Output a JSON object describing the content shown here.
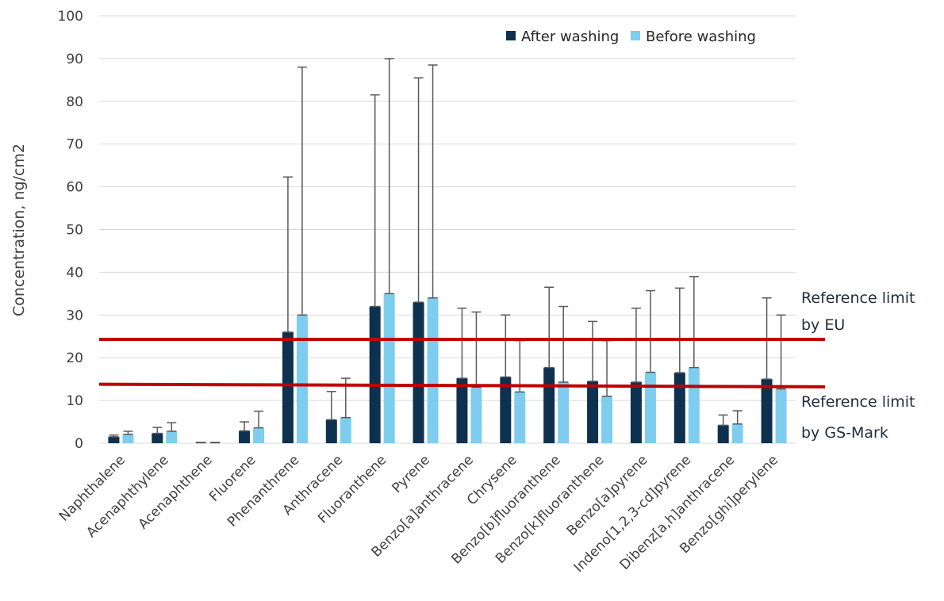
{
  "chart_data": {
    "type": "bar",
    "ylabel": "Concentration, ng/cm2",
    "xlabel": "",
    "ylim": [
      0,
      100
    ],
    "yticks": [
      0,
      10,
      20,
      30,
      40,
      50,
      60,
      70,
      80,
      90,
      100
    ],
    "grid": true,
    "legend_position": "top-right",
    "categories": [
      "Naphthalene",
      "Acenaphthylene",
      "Acenaphthene",
      "Fluorene",
      "Phenanthrene",
      "Anthracene",
      "Fluoranthene",
      "Pyrene",
      "Benzo[a]anthracene",
      "Chrysene",
      "Benzo[b]fluoranthene",
      "Benzo[k]fluoranthene",
      "Benzo[a]pyrene",
      "Indeno[1,2,3-cd]pyrene",
      "Dibenz[a,h]anthracene",
      "Benzo[ghi]perylene"
    ],
    "series": [
      {
        "name": "After washing",
        "color": "#0e3150",
        "values": [
          1.5,
          2.3,
          0.1,
          2.9,
          26,
          5.5,
          32,
          33,
          15.2,
          15.5,
          17.7,
          14.5,
          14.3,
          16.5,
          4.2,
          15
        ],
        "error_upper": [
          1.9,
          3.7,
          0.2,
          5,
          62.3,
          12.1,
          81.5,
          85.5,
          31.6,
          30,
          36.5,
          28.5,
          31.6,
          36.3,
          6.6,
          34
        ]
      },
      {
        "name": "Before washing",
        "color": "#7fcdee",
        "values": [
          2.1,
          2.8,
          0.1,
          3.6,
          30,
          6,
          35,
          34,
          13.1,
          12,
          14.3,
          11,
          16.6,
          17.7,
          4.5,
          12.7
        ],
        "error_upper": [
          2.8,
          4.8,
          0.2,
          7.5,
          88,
          15.2,
          90,
          88.5,
          30.7,
          24,
          32,
          24,
          35.7,
          39,
          7.6,
          30
        ]
      }
    ],
    "reference_lines": [
      {
        "label_line1": "Reference limit",
        "label_line2": "by EU",
        "y_start": 24.3,
        "y_end": 24.3,
        "color": "#c00000"
      },
      {
        "label_line1": "Reference limit",
        "label_line2": "by GS-Mark",
        "y_start": 13.8,
        "y_end": 13.2,
        "color": "#c00000"
      }
    ],
    "grid_color": "#d9d9d9",
    "errorbar_color": "#595959"
  }
}
